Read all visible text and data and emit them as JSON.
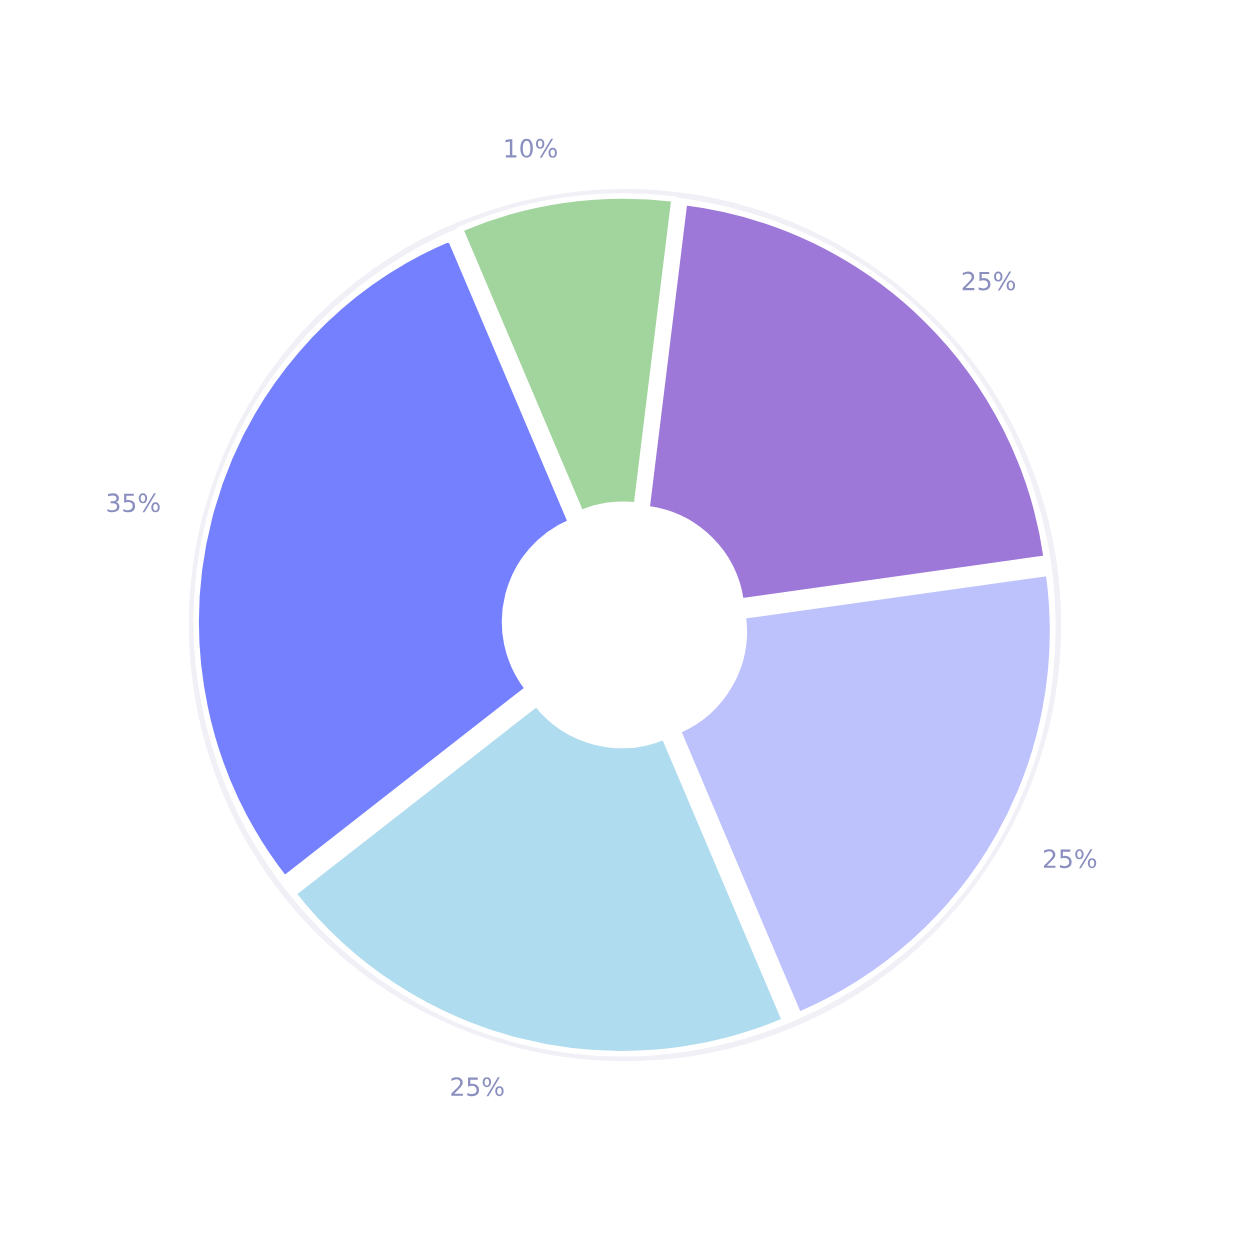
{
  "chart_data": {
    "type": "donut",
    "categories": [
      null,
      null,
      null,
      null,
      null
    ],
    "values": [
      10,
      25,
      25,
      25,
      35
    ],
    "value_labels": [
      "10%",
      "25%",
      "25%",
      "25%",
      "35%"
    ],
    "colors": [
      "#a2d59e",
      "#9d78d8",
      "#bec2fc",
      "#b0dcef",
      "#7580ff"
    ],
    "legend": false
  }
}
